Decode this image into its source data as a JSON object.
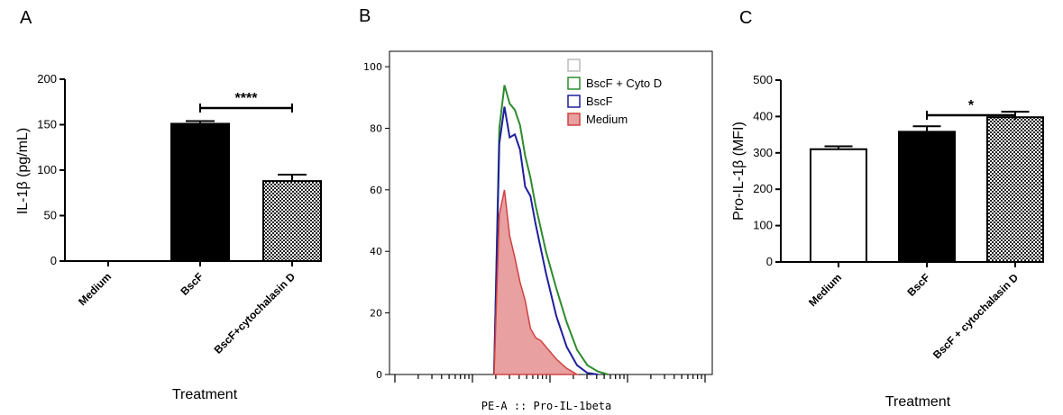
{
  "chart_data": [
    {
      "panel": "A",
      "type": "bar",
      "categories": [
        "Medium",
        "BscF",
        "BscF+cytochalasin D"
      ],
      "values": [
        0,
        151,
        88
      ],
      "errors": [
        0,
        3,
        7
      ],
      "fills": [
        "#ffffff",
        "#000000",
        "checker"
      ],
      "xlabel": "Treatment",
      "ylabel": "IL-1β (pg/mL)",
      "ylim": [
        0,
        200
      ],
      "yticks": [
        "0",
        "50",
        "100",
        "150",
        "200"
      ],
      "significance": {
        "from": 1,
        "to": 2,
        "label": "****"
      },
      "grid": false
    },
    {
      "panel": "B",
      "type": "area",
      "x_scale": "log",
      "xlabel": "PE-A :: Pro-IL-1beta",
      "ylim": [
        0,
        105
      ],
      "yticks": [
        "0",
        "20",
        "40",
        "60",
        "80",
        "100"
      ],
      "legend_position": "top-right",
      "series": [
        {
          "name": "",
          "color": "#ffffff",
          "fill": false,
          "values": []
        },
        {
          "name": "BscF + Cyto D",
          "color": "#2e8b2e",
          "fill": false,
          "values": [
            [
              0,
              0
            ],
            [
              0.5,
              80
            ],
            [
              1,
              94
            ],
            [
              1.5,
              88
            ],
            [
              2,
              86
            ],
            [
              2.5,
              81
            ],
            [
              3,
              71
            ],
            [
              3.5,
              64
            ],
            [
              4,
              55
            ],
            [
              5,
              40
            ],
            [
              6,
              28
            ],
            [
              7,
              17
            ],
            [
              8,
              8
            ],
            [
              9,
              3
            ],
            [
              10,
              1
            ],
            [
              11,
              0
            ]
          ]
        },
        {
          "name": "BscF",
          "color": "#1f1f9e",
          "fill": false,
          "values": [
            [
              0,
              0
            ],
            [
              0.5,
              75
            ],
            [
              1,
              87
            ],
            [
              1.5,
              77
            ],
            [
              2,
              78
            ],
            [
              2.5,
              73
            ],
            [
              3,
              61
            ],
            [
              3.5,
              58
            ],
            [
              4,
              49
            ],
            [
              5,
              33
            ],
            [
              6,
              19
            ],
            [
              7,
              9
            ],
            [
              8,
              3
            ],
            [
              9,
              0.5
            ],
            [
              10,
              0
            ]
          ]
        },
        {
          "name": "Medium",
          "color": "#d04040",
          "fill": true,
          "values": [
            [
              0,
              0
            ],
            [
              0.5,
              52
            ],
            [
              1,
              60
            ],
            [
              1.5,
              45
            ],
            [
              2,
              38
            ],
            [
              2.5,
              30
            ],
            [
              3,
              24
            ],
            [
              3.5,
              15
            ],
            [
              4,
              12
            ],
            [
              4.5,
              11
            ],
            [
              5,
              9
            ],
            [
              6,
              5
            ],
            [
              7,
              2
            ],
            [
              8,
              0
            ]
          ]
        }
      ]
    },
    {
      "panel": "C",
      "type": "bar",
      "categories": [
        "Medium",
        "BscF",
        "BscF + cytochalasin D"
      ],
      "values": [
        310,
        358,
        398
      ],
      "errors": [
        8,
        15,
        15
      ],
      "fills": [
        "#ffffff",
        "#000000",
        "checker"
      ],
      "xlabel": "Treatment",
      "ylabel": "Pro-IL-1β (MFI)",
      "ylim": [
        0,
        500
      ],
      "yticks": [
        "0",
        "100",
        "200",
        "300",
        "400",
        "500"
      ],
      "significance": {
        "from": 1,
        "to": 2,
        "label": "*"
      },
      "grid": false
    }
  ]
}
